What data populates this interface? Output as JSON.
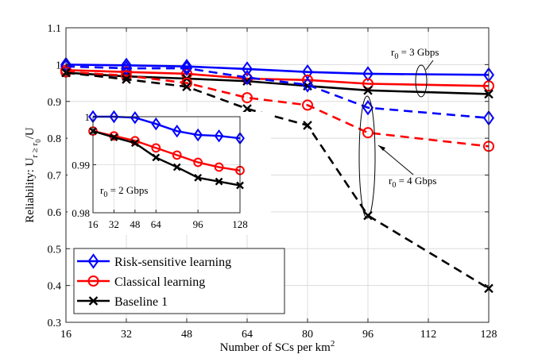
{
  "chart_data": {
    "type": "line",
    "xlabel": "Number of SCs per km",
    "xlabel_sup": "2",
    "ylabel": "Reliability: U",
    "ylabel_sub": "r ≥ r",
    "ylabel_subsub": "0",
    "ylabel_tail": "/U",
    "x_ticks": [
      16,
      32,
      48,
      64,
      80,
      96,
      112,
      128
    ],
    "y_ticks": [
      0.3,
      0.4,
      0.5,
      0.6,
      0.7,
      0.8,
      0.9,
      1,
      1.1
    ],
    "xlim": [
      16,
      128
    ],
    "ylim": [
      0.3,
      1.1
    ],
    "grid": true,
    "legend_position": "bottom-left",
    "x": [
      16,
      32,
      48,
      64,
      80,
      96,
      128
    ],
    "series": [
      {
        "name": "Risk-sensitive learning",
        "color": "#0000ff",
        "marker": "diamond",
        "rate": "3",
        "values": [
          1.0,
          0.998,
          0.995,
          0.988,
          0.98,
          0.975,
          0.972
        ]
      },
      {
        "name": "Classical learning",
        "color": "#ff0000",
        "marker": "circle",
        "rate": "3",
        "values": [
          0.985,
          0.98,
          0.975,
          0.962,
          0.958,
          0.948,
          0.942
        ]
      },
      {
        "name": "Baseline 1",
        "color": "#000000",
        "marker": "x",
        "rate": "3",
        "values": [
          0.978,
          0.968,
          0.962,
          0.955,
          0.942,
          0.93,
          0.92
        ]
      },
      {
        "name": "Risk-sensitive learning",
        "color": "#0000ff",
        "marker": "diamond",
        "rate": "4",
        "values": [
          0.995,
          0.99,
          0.99,
          0.965,
          0.945,
          0.883,
          0.855
        ]
      },
      {
        "name": "Classical learning",
        "color": "#ff0000",
        "marker": "circle",
        "rate": "4",
        "values": [
          0.98,
          0.97,
          0.95,
          0.91,
          0.89,
          0.815,
          0.778
        ]
      },
      {
        "name": "Baseline 1",
        "color": "#000000",
        "marker": "x",
        "rate": "4",
        "values": [
          0.978,
          0.96,
          0.94,
          0.88,
          0.835,
          0.59,
          0.392
        ]
      }
    ],
    "annotations": [
      {
        "text": "r",
        "sub": "0",
        "tail": " = 3 Gbps"
      },
      {
        "text": "r",
        "sub": "0",
        "tail": " = 4 Gbps"
      }
    ],
    "inset": {
      "label": "r",
      "label_sub": "0",
      "label_tail": " = 2 Gbps",
      "x_ticks": [
        16,
        32,
        48,
        64,
        96,
        128
      ],
      "y_ticks": [
        0.98,
        0.99,
        1
      ],
      "y_tick_labels": [
        "0.98",
        "0.99",
        "1"
      ],
      "xlim": [
        16,
        128
      ],
      "ylim": [
        0.98,
        1.0
      ],
      "x": [
        16,
        32,
        48,
        64,
        80,
        96,
        112,
        128
      ],
      "series": [
        {
          "name": "Risk-sensitive learning",
          "color": "#0000ff",
          "marker": "diamond",
          "values": [
            1.0,
            1.0,
            0.9998,
            0.9985,
            0.997,
            0.9962,
            0.996,
            0.9955
          ]
        },
        {
          "name": "Classical learning",
          "color": "#ff0000",
          "marker": "circle",
          "values": [
            0.997,
            0.996,
            0.995,
            0.9935,
            0.992,
            0.9905,
            0.9895,
            0.9888
          ]
        },
        {
          "name": "Baseline 1",
          "color": "#000000",
          "marker": "x",
          "values": [
            0.997,
            0.9957,
            0.9945,
            0.9915,
            0.9895,
            0.9873,
            0.9865,
            0.9857
          ]
        }
      ]
    }
  }
}
